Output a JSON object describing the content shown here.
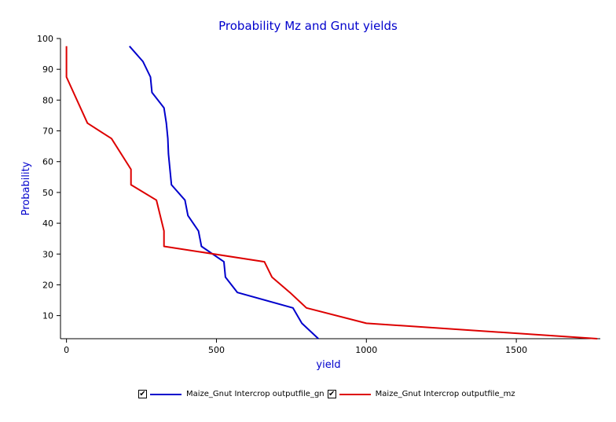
{
  "chart_data": {
    "type": "line",
    "title": "Probability Mz and Gnut yields",
    "xlabel": "yield",
    "ylabel": "Probability",
    "xlim": [
      -20,
      1780
    ],
    "ylim": [
      2.5,
      100
    ],
    "x_ticks": [
      0,
      500,
      1000,
      1500
    ],
    "y_ticks": [
      10,
      20,
      30,
      40,
      50,
      60,
      70,
      80,
      90,
      100
    ],
    "grid": false,
    "legend_position": "bottom",
    "series": [
      {
        "name": "Maize_Gnut Intercrop outputfile_gn",
        "color": "#0000cc",
        "points": [
          [
            840,
            2.5
          ],
          [
            785,
            7.5
          ],
          [
            755,
            12.5
          ],
          [
            570,
            17.5
          ],
          [
            530,
            22.5
          ],
          [
            525,
            27.5
          ],
          [
            450,
            32.5
          ],
          [
            440,
            37.5
          ],
          [
            405,
            42.5
          ],
          [
            395,
            47.5
          ],
          [
            350,
            52.5
          ],
          [
            345,
            57.5
          ],
          [
            340,
            62.5
          ],
          [
            338,
            67.5
          ],
          [
            333,
            72.5
          ],
          [
            325,
            77.5
          ],
          [
            285,
            82.5
          ],
          [
            280,
            87.5
          ],
          [
            255,
            92.5
          ],
          [
            210,
            97.5
          ]
        ]
      },
      {
        "name": "Maize_Gnut Intercrop outputfile_mz",
        "color": "#dd0000",
        "points": [
          [
            1770,
            2.5
          ],
          [
            1000,
            7.5
          ],
          [
            800,
            12.5
          ],
          [
            745,
            17.5
          ],
          [
            685,
            22.5
          ],
          [
            660,
            27.5
          ],
          [
            325,
            32.5
          ],
          [
            325,
            37.5
          ],
          [
            300,
            47.5
          ],
          [
            215,
            52.5
          ],
          [
            215,
            57.5
          ],
          [
            150,
            67.5
          ],
          [
            70,
            72.5
          ],
          [
            0,
            87.5
          ],
          [
            0,
            97.5
          ]
        ]
      }
    ]
  },
  "legend": {
    "items": [
      {
        "label": "Maize_Gnut Intercrop outputfile_gn",
        "color": "#0000cc",
        "check": "✔"
      },
      {
        "label": "Maize_Gnut Intercrop outputfile_mz",
        "color": "#dd0000",
        "check": "✔"
      }
    ]
  }
}
